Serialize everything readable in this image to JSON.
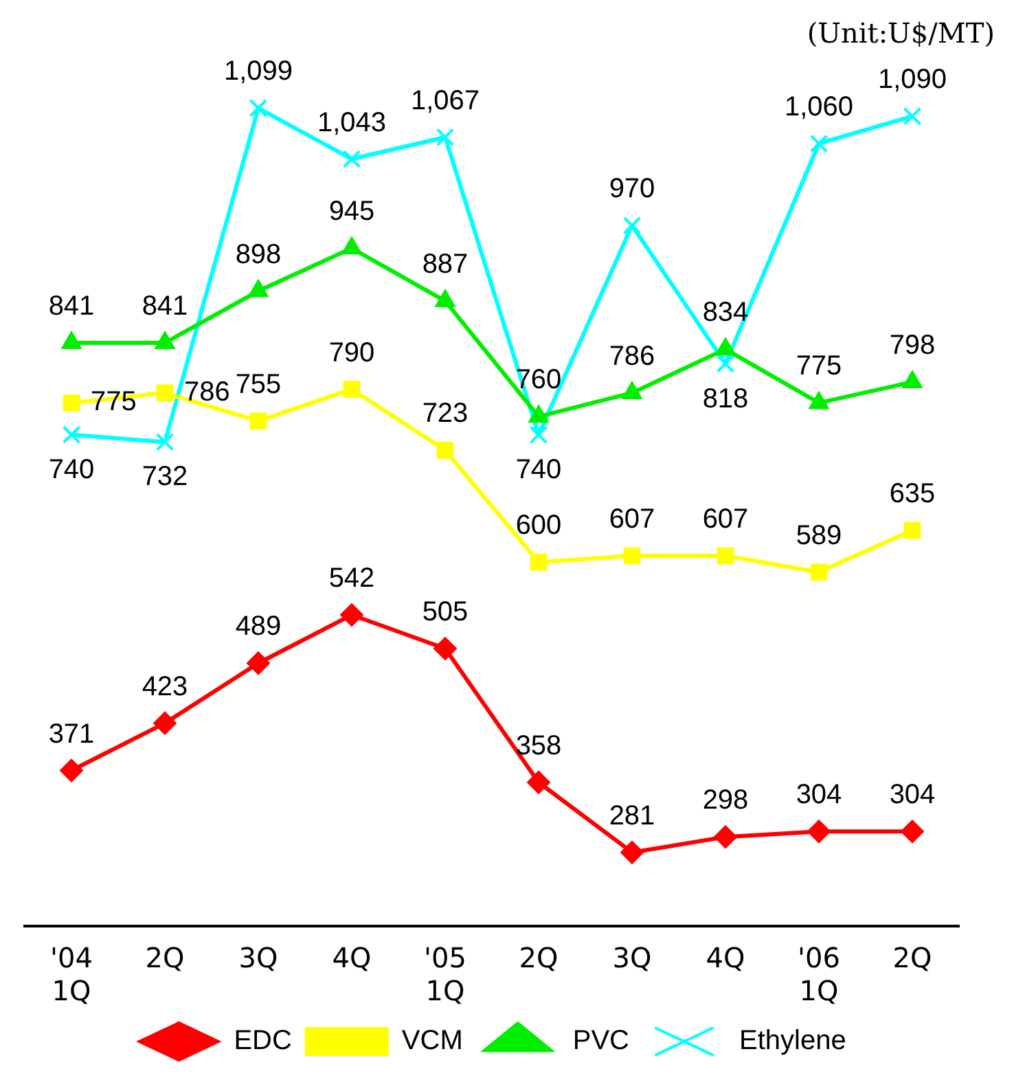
{
  "chart_data": {
    "type": "line",
    "annotations": [
      "(Unit:U$/MT)"
    ],
    "categories": [
      "'04\n1Q",
      "2Q",
      "3Q",
      "4Q",
      "'05\n1Q",
      "2Q",
      "3Q",
      "4Q",
      "'06\n1Q",
      "2Q"
    ],
    "series": [
      {
        "name": "EDC",
        "color": "#ff0000",
        "marker": "diamond",
        "values": [
          371,
          423,
          489,
          542,
          505,
          358,
          281,
          298,
          304,
          304
        ]
      },
      {
        "name": "VCM",
        "color": "#ffff00",
        "marker": "square",
        "values": [
          775,
          786,
          755,
          790,
          723,
          600,
          607,
          607,
          589,
          635
        ]
      },
      {
        "name": "PVC",
        "color": "#00ee00",
        "marker": "triangle",
        "values": [
          841,
          841,
          898,
          945,
          887,
          760,
          786,
          834,
          775,
          798
        ]
      },
      {
        "name": "Ethylene",
        "color": "#00ffff",
        "marker": "cross",
        "values": [
          740,
          732,
          1099,
          1043,
          1067,
          740,
          970,
          818,
          1060,
          1090
        ],
        "value_labels": [
          "740",
          "732",
          "1,099",
          "1,043",
          "1,067",
          "740",
          "970",
          "818",
          "1,060",
          "1,090"
        ]
      }
    ],
    "data_labels": true,
    "legend": "bottom",
    "grid": false,
    "line_style": "solid"
  }
}
